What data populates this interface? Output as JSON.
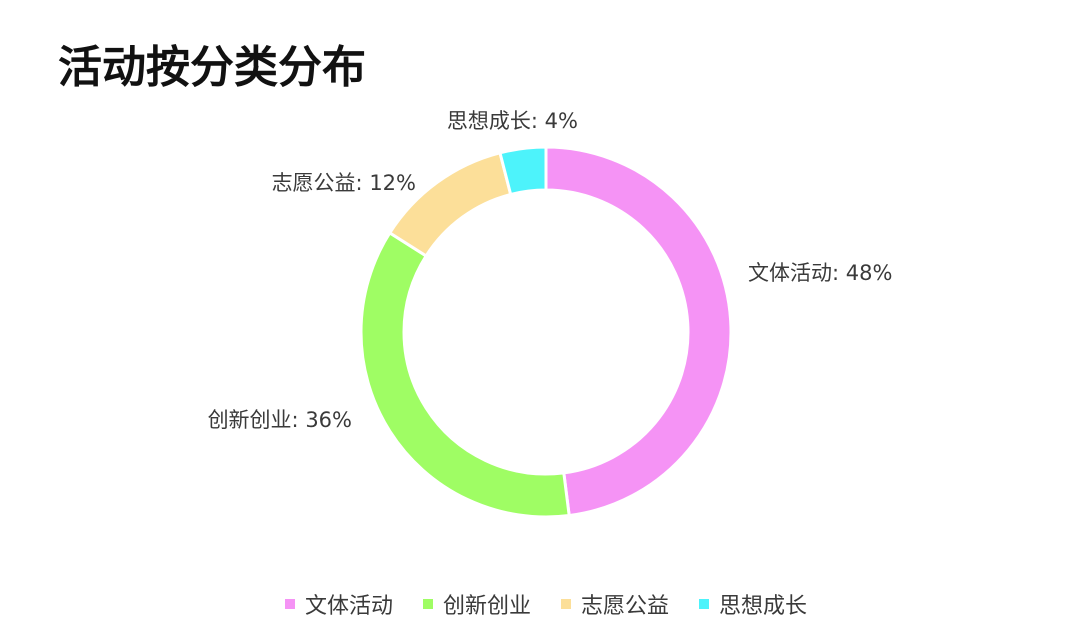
{
  "chart_data": {
    "type": "pie",
    "title": "活动按分类分布",
    "categories": [
      "文体活动",
      "创新创业",
      "志愿公益",
      "思想成长"
    ],
    "values": [
      48,
      36,
      12,
      4
    ],
    "unit": "%",
    "colors": [
      "#f593f5",
      "#9ffd64",
      "#fcdf99",
      "#4df3fb"
    ],
    "slice_labels": [
      "文体活动: 48%",
      "创新创业: 36%",
      "志愿公益: 12%",
      "思想成长: 4%"
    ],
    "donut": true,
    "legend": "bottom"
  }
}
